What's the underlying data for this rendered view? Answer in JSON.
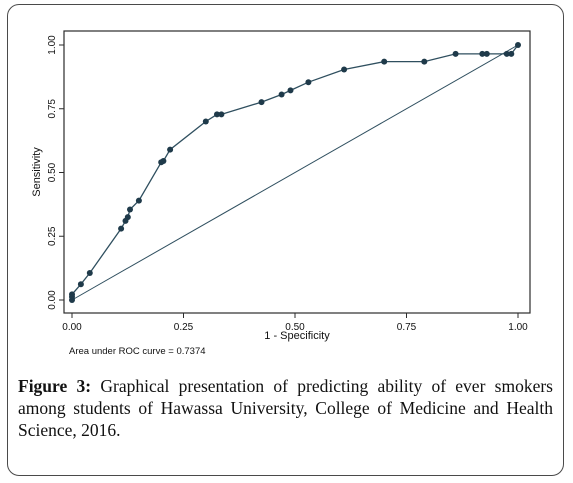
{
  "chart_data": {
    "type": "line",
    "title": "",
    "xlabel": "1 - Specificity",
    "ylabel": "Sensitivity",
    "xlim": [
      0,
      1
    ],
    "ylim": [
      0,
      1
    ],
    "x_ticks": [
      "0.00",
      "0.25",
      "0.50",
      "0.75",
      "1.00"
    ],
    "y_ticks": [
      "0.00",
      "0.25",
      "0.50",
      "0.75",
      "1.00"
    ],
    "grid": false,
    "legend": "none",
    "annotation": "Area under ROC curve = 0.7374",
    "series": [
      {
        "line_color": "#2f4f5f",
        "marker_color": "#1f3a4a",
        "points": [
          [
            0.0,
            0.0
          ],
          [
            0.0,
            0.013
          ],
          [
            0.0,
            0.022
          ],
          [
            0.02,
            0.062
          ],
          [
            0.04,
            0.106
          ],
          [
            0.11,
            0.28
          ],
          [
            0.12,
            0.31
          ],
          [
            0.125,
            0.325
          ],
          [
            0.13,
            0.355
          ],
          [
            0.15,
            0.39
          ],
          [
            0.2,
            0.54
          ],
          [
            0.205,
            0.545
          ],
          [
            0.22,
            0.59
          ],
          [
            0.3,
            0.7
          ],
          [
            0.325,
            0.728
          ],
          [
            0.335,
            0.728
          ],
          [
            0.425,
            0.776
          ],
          [
            0.47,
            0.806
          ],
          [
            0.49,
            0.822
          ],
          [
            0.53,
            0.854
          ],
          [
            0.61,
            0.904
          ],
          [
            0.7,
            0.935
          ],
          [
            0.79,
            0.935
          ],
          [
            0.86,
            0.965
          ],
          [
            0.92,
            0.965
          ],
          [
            0.93,
            0.965
          ],
          [
            0.975,
            0.965
          ],
          [
            0.985,
            0.965
          ],
          [
            1.0,
            1.0
          ]
        ]
      },
      {
        "line_color": "#2f4f5f",
        "points": [
          [
            0,
            0
          ],
          [
            1,
            1
          ]
        ]
      }
    ]
  },
  "caption": {
    "label": "Figure 3:",
    "text": " Graphical presentation of predicting ability of ever smokers among students of Hawassa University, College of Medicine and Health Science, 2016."
  },
  "colors": {
    "frame_border": "#4a4a4a",
    "plot_border": "#2b2b2b",
    "curve": "#2f4f5f"
  }
}
